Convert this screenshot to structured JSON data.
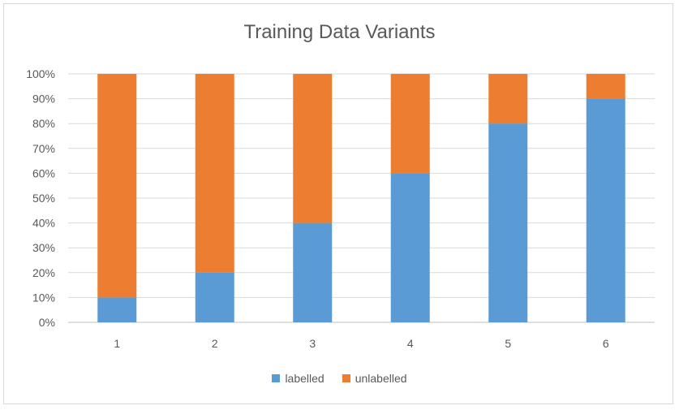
{
  "chart_data": {
    "type": "bar",
    "stacked": true,
    "title": "Training Data Variants",
    "xlabel": "",
    "ylabel": "",
    "categories": [
      "1",
      "2",
      "3",
      "4",
      "5",
      "6"
    ],
    "series": [
      {
        "name": "labelled",
        "color": "#5b9bd5",
        "values": [
          10,
          20,
          40,
          60,
          80,
          90
        ]
      },
      {
        "name": "unlabelled",
        "color": "#ed7d31",
        "values": [
          90,
          80,
          60,
          40,
          20,
          10
        ]
      }
    ],
    "ylim": [
      0,
      100
    ],
    "y_ticks": [
      "0%",
      "10%",
      "20%",
      "30%",
      "40%",
      "50%",
      "60%",
      "70%",
      "80%",
      "90%",
      "100%"
    ],
    "grid": true,
    "legend_position": "bottom"
  }
}
